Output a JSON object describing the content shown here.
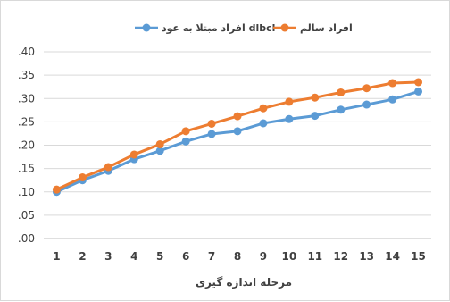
{
  "chart_data": {
    "type": "line",
    "title": "",
    "xlabel": "مرحله اندازه گیری",
    "ylabel": "",
    "categories": [
      "1",
      "2",
      "3",
      "4",
      "5",
      "6",
      "7",
      "8",
      "9",
      "10",
      "11",
      "12",
      "13",
      "14",
      "15"
    ],
    "ylim": [
      0,
      0.4
    ],
    "yticks": [
      0,
      0.05,
      0.1,
      0.15,
      0.2,
      0.25,
      0.3,
      0.35,
      0.4
    ],
    "ytick_labels": [
      ".00",
      ".05",
      ".10",
      ".15",
      ".20",
      ".25",
      ".30",
      ".35",
      ".40"
    ],
    "grid": true,
    "legend_position": "top",
    "series": [
      {
        "name": "افراد مبتلا به عود dlbcl",
        "color": "#5b9bd5",
        "values": [
          0.1,
          0.125,
          0.145,
          0.17,
          0.188,
          0.208,
          0.224,
          0.23,
          0.247,
          0.256,
          0.263,
          0.276,
          0.287,
          0.298,
          0.315
        ]
      },
      {
        "name": "افراد سالم",
        "color": "#ed7d31",
        "values": [
          0.105,
          0.131,
          0.153,
          0.18,
          0.202,
          0.23,
          0.246,
          0.262,
          0.279,
          0.293,
          0.302,
          0.313,
          0.322,
          0.333,
          0.335
        ]
      }
    ]
  }
}
